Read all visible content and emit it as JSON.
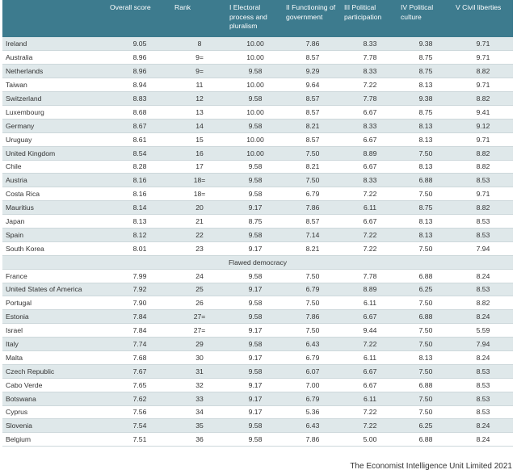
{
  "headers": {
    "country": "",
    "overall": "Overall score",
    "rank": "Rank",
    "c1": "I Electoral process and pluralism",
    "c2": "II Functioning of government",
    "c3": "III Political participation",
    "c4": "IV Political culture",
    "c5": "V Civil liberties"
  },
  "rows_top": [
    {
      "country": "Ireland",
      "overall": "9.05",
      "rank": "8",
      "c1": "10.00",
      "c2": "7.86",
      "c3": "8.33",
      "c4": "9.38",
      "c5": "9.71"
    },
    {
      "country": "Australia",
      "overall": "8.96",
      "rank": "9=",
      "c1": "10.00",
      "c2": "8.57",
      "c3": "7.78",
      "c4": "8.75",
      "c5": "9.71"
    },
    {
      "country": "Netherlands",
      "overall": "8.96",
      "rank": "9=",
      "c1": "9.58",
      "c2": "9.29",
      "c3": "8.33",
      "c4": "8.75",
      "c5": "8.82"
    },
    {
      "country": "Taiwan",
      "overall": "8.94",
      "rank": "11",
      "c1": "10.00",
      "c2": "9.64",
      "c3": "7.22",
      "c4": "8.13",
      "c5": "9.71"
    },
    {
      "country": "Switzerland",
      "overall": "8.83",
      "rank": "12",
      "c1": "9.58",
      "c2": "8.57",
      "c3": "7.78",
      "c4": "9.38",
      "c5": "8.82"
    },
    {
      "country": "Luxembourg",
      "overall": "8.68",
      "rank": "13",
      "c1": "10.00",
      "c2": "8.57",
      "c3": "6.67",
      "c4": "8.75",
      "c5": "9.41"
    },
    {
      "country": "Germany",
      "overall": "8.67",
      "rank": "14",
      "c1": "9.58",
      "c2": "8.21",
      "c3": "8.33",
      "c4": "8.13",
      "c5": "9.12"
    },
    {
      "country": "Uruguay",
      "overall": "8.61",
      "rank": "15",
      "c1": "10.00",
      "c2": "8.57",
      "c3": "6.67",
      "c4": "8.13",
      "c5": "9.71"
    },
    {
      "country": "United Kingdom",
      "overall": "8.54",
      "rank": "16",
      "c1": "10.00",
      "c2": "7.50",
      "c3": "8.89",
      "c4": "7.50",
      "c5": "8.82"
    },
    {
      "country": "Chile",
      "overall": "8.28",
      "rank": "17",
      "c1": "9.58",
      "c2": "8.21",
      "c3": "6.67",
      "c4": "8.13",
      "c5": "8.82"
    },
    {
      "country": "Austria",
      "overall": "8.16",
      "rank": "18=",
      "c1": "9.58",
      "c2": "7.50",
      "c3": "8.33",
      "c4": "6.88",
      "c5": "8.53"
    },
    {
      "country": "Costa Rica",
      "overall": "8.16",
      "rank": "18=",
      "c1": "9.58",
      "c2": "6.79",
      "c3": "7.22",
      "c4": "7.50",
      "c5": "9.71"
    },
    {
      "country": "Mauritius",
      "overall": "8.14",
      "rank": "20",
      "c1": "9.17",
      "c2": "7.86",
      "c3": "6.11",
      "c4": "8.75",
      "c5": "8.82"
    },
    {
      "country": "Japan",
      "overall": "8.13",
      "rank": "21",
      "c1": "8.75",
      "c2": "8.57",
      "c3": "6.67",
      "c4": "8.13",
      "c5": "8.53"
    },
    {
      "country": "Spain",
      "overall": "8.12",
      "rank": "22",
      "c1": "9.58",
      "c2": "7.14",
      "c3": "7.22",
      "c4": "8.13",
      "c5": "8.53"
    },
    {
      "country": "South Korea",
      "overall": "8.01",
      "rank": "23",
      "c1": "9.17",
      "c2": "8.21",
      "c3": "7.22",
      "c4": "7.50",
      "c5": "7.94"
    }
  ],
  "section_label": "Flawed democracy",
  "rows_bottom": [
    {
      "country": "France",
      "overall": "7.99",
      "rank": "24",
      "c1": "9.58",
      "c2": "7.50",
      "c3": "7.78",
      "c4": "6.88",
      "c5": "8.24"
    },
    {
      "country": "United States of America",
      "overall": "7.92",
      "rank": "25",
      "c1": "9.17",
      "c2": "6.79",
      "c3": "8.89",
      "c4": "6.25",
      "c5": "8.53"
    },
    {
      "country": "Portugal",
      "overall": "7.90",
      "rank": "26",
      "c1": "9.58",
      "c2": "7.50",
      "c3": "6.11",
      "c4": "7.50",
      "c5": "8.82"
    },
    {
      "country": "Estonia",
      "overall": "7.84",
      "rank": "27=",
      "c1": "9.58",
      "c2": "7.86",
      "c3": "6.67",
      "c4": "6.88",
      "c5": "8.24"
    },
    {
      "country": "Israel",
      "overall": "7.84",
      "rank": "27=",
      "c1": "9.17",
      "c2": "7.50",
      "c3": "9.44",
      "c4": "7.50",
      "c5": "5.59"
    },
    {
      "country": "Italy",
      "overall": "7.74",
      "rank": "29",
      "c1": "9.58",
      "c2": "6.43",
      "c3": "7.22",
      "c4": "7.50",
      "c5": "7.94"
    },
    {
      "country": "Malta",
      "overall": "7.68",
      "rank": "30",
      "c1": "9.17",
      "c2": "6.79",
      "c3": "6.11",
      "c4": "8.13",
      "c5": "8.24"
    },
    {
      "country": "Czech Republic",
      "overall": "7.67",
      "rank": "31",
      "c1": "9.58",
      "c2": "6.07",
      "c3": "6.67",
      "c4": "7.50",
      "c5": "8.53"
    },
    {
      "country": "Cabo Verde",
      "overall": "7.65",
      "rank": "32",
      "c1": "9.17",
      "c2": "7.00",
      "c3": "6.67",
      "c4": "6.88",
      "c5": "8.53"
    },
    {
      "country": "Botswana",
      "overall": "7.62",
      "rank": "33",
      "c1": "9.17",
      "c2": "6.79",
      "c3": "6.11",
      "c4": "7.50",
      "c5": "8.53"
    },
    {
      "country": "Cyprus",
      "overall": "7.56",
      "rank": "34",
      "c1": "9.17",
      "c2": "5.36",
      "c3": "7.22",
      "c4": "7.50",
      "c5": "8.53"
    },
    {
      "country": "Slovenia",
      "overall": "7.54",
      "rank": "35",
      "c1": "9.58",
      "c2": "6.43",
      "c3": "7.22",
      "c4": "6.25",
      "c5": "8.24"
    },
    {
      "country": "Belgium",
      "overall": "7.51",
      "rank": "36",
      "c1": "9.58",
      "c2": "7.86",
      "c3": "5.00",
      "c4": "6.88",
      "c5": "8.24"
    }
  ],
  "credit": "The Economist Intelligence Unit Limited 2021"
}
